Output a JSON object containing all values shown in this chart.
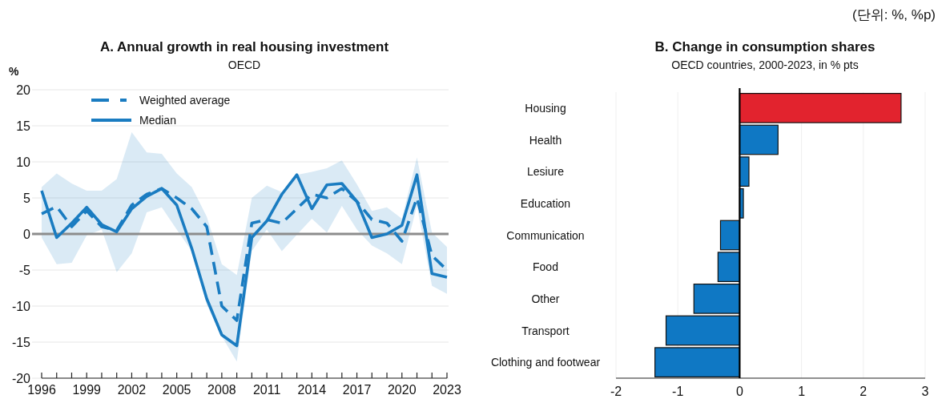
{
  "chart_data": [
    {
      "type": "line",
      "title": "A. Annual growth in real housing investment",
      "subtitle": "OECD",
      "ylabel": "%",
      "x": [
        1996,
        1997,
        1998,
        1999,
        2000,
        2001,
        2002,
        2003,
        2004,
        2005,
        2006,
        2007,
        2008,
        2009,
        2010,
        2011,
        2012,
        2013,
        2014,
        2015,
        2016,
        2017,
        2018,
        2019,
        2020,
        2021,
        2022,
        2023
      ],
      "xlim": [
        1996,
        2023
      ],
      "xticks": [
        1996,
        {
          "value": 1997,
          "label": null
        },
        {
          "value": 1998,
          "label": null
        },
        1999,
        {
          "value": 2000,
          "label": null
        },
        {
          "value": 2001,
          "label": null
        },
        2002,
        {
          "value": 2003,
          "label": null
        },
        {
          "value": 2004,
          "label": null
        },
        2005,
        {
          "value": 2006,
          "label": null
        },
        {
          "value": 2007,
          "label": null
        },
        2008,
        {
          "value": 2009,
          "label": null
        },
        {
          "value": 2010,
          "label": null
        },
        2011,
        {
          "value": 2012,
          "label": null
        },
        {
          "value": 2013,
          "label": null
        },
        2014,
        {
          "value": 2015,
          "label": null
        },
        {
          "value": 2016,
          "label": null
        },
        2017,
        {
          "value": 2018,
          "label": null
        },
        {
          "value": 2019,
          "label": null
        },
        2020,
        {
          "value": 2021,
          "label": null
        },
        {
          "value": 2022,
          "label": null
        },
        2023
      ],
      "ylim": [
        -20,
        20
      ],
      "yticks": [
        -20,
        -15,
        -10,
        -5,
        0,
        5,
        10,
        15,
        20
      ],
      "grid": "y",
      "legend": "top left",
      "ref_lines": [
        {
          "axis": "y",
          "value": 0,
          "color": "#8c8c8c"
        }
      ],
      "series": [
        {
          "name": "Weighted average",
          "color": "#1a7cc1",
          "line_style": "dashed",
          "values": [
            2.8,
            3.8,
            1,
            3.2,
            1,
            0.5,
            4,
            5.5,
            6.3,
            5,
            3.5,
            1,
            -10,
            -12,
            1.5,
            2,
            1.5,
            3.5,
            5.5,
            5,
            6.3,
            4.5,
            2,
            1.5,
            -1,
            5,
            -3,
            -5
          ]
        },
        {
          "name": "Median",
          "color": "#1a7cc1",
          "line_style": "solid",
          "values": [
            6,
            -0.5,
            1.5,
            3.7,
            1.3,
            0.3,
            3.5,
            5.2,
            6.3,
            4,
            -2,
            -9,
            -14,
            -15.5,
            -0.5,
            1.8,
            5.5,
            8.2,
            3.5,
            6.8,
            7,
            4.5,
            -0.5,
            0,
            1.2,
            8.2,
            -5.5,
            -6
          ],
          "lower": [
            -0.5,
            -4.2,
            -4,
            -0.2,
            0.6,
            -5.3,
            -2.7,
            3,
            3.7,
            0.6,
            -2.4,
            -9.8,
            -14.2,
            -17.7,
            -2.4,
            0.6,
            -2.4,
            -0.1,
            2.1,
            0.2,
            3.9,
            0.6,
            -1.6,
            -2.7,
            -4.2,
            3.9,
            -7.2,
            -8.3
          ],
          "upper": [
            6.5,
            8.4,
            7,
            6,
            6,
            7.6,
            14.1,
            11.3,
            11.1,
            8.4,
            6.5,
            2.4,
            -4.2,
            -5.7,
            5,
            6.7,
            5.8,
            8.2,
            8.6,
            9.1,
            10.2,
            6.9,
            3.2,
            3.7,
            2.1,
            10.6,
            0.2,
            -1.8
          ]
        }
      ]
    },
    {
      "type": "bar",
      "orientation": "horizontal",
      "title": "B. Change in consumption shares",
      "subtitle": "OECD countries, 2000-2023, in % pts",
      "categories": [
        "Housing",
        "Health",
        "Lesiure",
        "Education",
        "Communication",
        "Food",
        "Other",
        "Transport",
        "Clothing and footwear"
      ],
      "values": [
        2.61,
        0.62,
        0.15,
        0.06,
        -0.31,
        -0.35,
        -0.74,
        -1.19,
        -1.37
      ],
      "colors": [
        "#e2232e",
        "#0f78c4",
        "#0f78c4",
        "#0f78c4",
        "#0f78c4",
        "#0f78c4",
        "#0f78c4",
        "#0f78c4",
        "#0f78c4"
      ],
      "xlim": [
        -2,
        3
      ],
      "xticks": [
        -2,
        -1,
        0,
        1,
        2,
        3
      ],
      "grid": "x",
      "annotations": [
        "(단위: %, %p)"
      ]
    }
  ]
}
